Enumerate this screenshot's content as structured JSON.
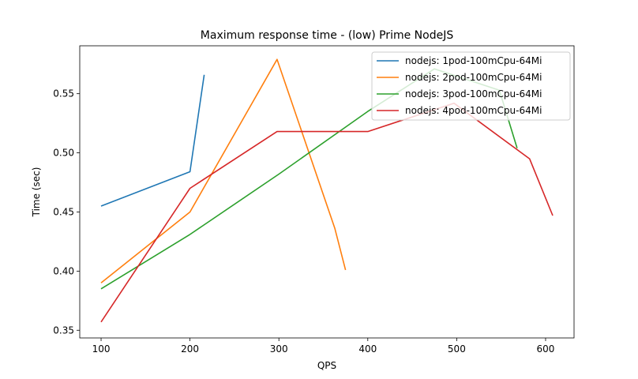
{
  "chart_data": {
    "type": "line",
    "title": "Maximum response time - (low) Prime NodeJS",
    "xlabel": "QPS",
    "ylabel": "Time (sec)",
    "xlim": [
      76,
      632
    ],
    "ylim": [
      0.3435,
      0.5905
    ],
    "xticks": [
      100,
      200,
      300,
      400,
      500,
      600
    ],
    "yticks": [
      0.35,
      0.4,
      0.45,
      0.5,
      0.55
    ],
    "ytick_labels": [
      "0.35",
      "0.40",
      "0.45",
      "0.50",
      "0.55"
    ],
    "grid": false,
    "legend_position": "top-right",
    "series": [
      {
        "name": "nodejs: 1pod-100mCpu-64Mi",
        "color": "#1f77b4",
        "x": [
          100,
          200,
          216
        ],
        "y": [
          0.455,
          0.484,
          0.566
        ]
      },
      {
        "name": "nodejs: 2pod-100mCpu-64Mi",
        "color": "#ff7f0e",
        "x": [
          100,
          200,
          298,
          363,
          375
        ],
        "y": [
          0.39,
          0.45,
          0.579,
          0.436,
          0.401
        ]
      },
      {
        "name": "nodejs: 3pod-100mCpu-64Mi",
        "color": "#2ca02c",
        "x": [
          100,
          200,
          300,
          400,
          475,
          548,
          568
        ],
        "y": [
          0.385,
          0.431,
          0.482,
          0.535,
          0.571,
          0.553,
          0.504
        ]
      },
      {
        "name": "nodejs: 4pod-100mCpu-64Mi",
        "color": "#d62728",
        "x": [
          100,
          200,
          298,
          400,
          497,
          582,
          608
        ],
        "y": [
          0.357,
          0.47,
          0.518,
          0.518,
          0.542,
          0.495,
          0.447
        ]
      }
    ]
  }
}
